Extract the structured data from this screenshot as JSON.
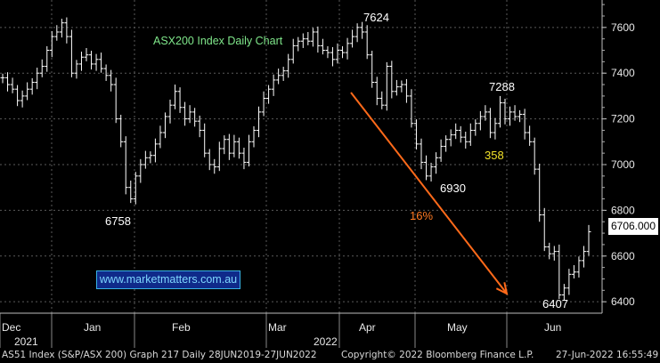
{
  "chart_data": {
    "type": "bar",
    "title": "ASX200 Index Daily Chart",
    "ylim": [
      6350,
      7720
    ],
    "y_ticks": [
      6400,
      6600,
      6800,
      7000,
      7200,
      7400,
      7600
    ],
    "grid": true,
    "x_labels": [
      {
        "label": "Dec",
        "month": "2021-12"
      },
      {
        "label": "Jan",
        "month": "2022-01"
      },
      {
        "label": "Feb",
        "month": "2022-02"
      },
      {
        "label": "Mar",
        "month": "2022-03"
      },
      {
        "label": "Apr",
        "month": "2022-04"
      },
      {
        "label": "May",
        "month": "2022-05"
      },
      {
        "label": "Jun",
        "month": "2022-06"
      }
    ],
    "year_labels": [
      "2021",
      "2022"
    ],
    "series": [
      {
        "close": [
          7380,
          7350,
          7330,
          7280,
          7300,
          7330,
          7360,
          7400,
          7430,
          7500,
          7560,
          7580,
          7620,
          7560,
          7400,
          7440,
          7470,
          7480,
          7440,
          7460,
          7420,
          7390,
          7350,
          7200,
          7100,
          6900,
          6850,
          6950,
          7000,
          7030,
          7040,
          7090,
          7140,
          7210,
          7260,
          7320,
          7250,
          7200,
          7230,
          7190,
          7150,
          7050,
          7000,
          6990,
          7070,
          7110,
          7050,
          7100,
          7050,
          7010,
          7100,
          7150,
          7230,
          7290,
          7330,
          7370,
          7390,
          7410,
          7460,
          7520,
          7540,
          7550,
          7540,
          7580,
          7520,
          7500,
          7490,
          7460,
          7500,
          7490,
          7530,
          7560,
          7600,
          7580,
          7480,
          7360,
          7290,
          7260,
          7430,
          7320,
          7340,
          7350,
          7300,
          7180,
          7090,
          7010,
          6950,
          6990,
          7030,
          7080,
          7110,
          7130,
          7150,
          7120,
          7100,
          7150,
          7180,
          7210,
          7230,
          7140,
          7180,
          7270,
          7200,
          7230,
          7210,
          7220,
          7140,
          7100,
          6980,
          6780,
          6640,
          6610,
          6620,
          6430,
          6460,
          6520,
          6530,
          6580,
          6620,
          6706
        ]
      },
      {
        "name": "arrow",
        "from": {
          "date": "2022-04-05",
          "value": 7330
        },
        "to": {
          "date": "2022-06-10",
          "value": 6400
        }
      }
    ],
    "annotations": [
      {
        "text": "7624",
        "color": "#ffffff"
      },
      {
        "text": "7288",
        "color": "#ffffff"
      },
      {
        "text": "6758",
        "color": "#ffffff"
      },
      {
        "text": "6930",
        "color": "#ffffff"
      },
      {
        "text": "6407",
        "color": "#ffffff"
      },
      {
        "text": "358",
        "color": "#f2e22a"
      },
      {
        "text": "16%",
        "color": "#ff7a22"
      }
    ],
    "last_price": "6706.000",
    "colors": {
      "background": "#000000",
      "bars": "#ffffff",
      "grid": "#5a5a5a",
      "arrow": "#ff6a1a",
      "title": "#7fe68a"
    }
  },
  "watermark": "www.marketmatters.com.au",
  "footer": {
    "left": "AS51 Index (S&P/ASX 200) Graph 217  Daily 28JUN2019-27JUN2022",
    "center": "Copyright© 2022 Bloomberg Finance L.P.",
    "right": "27-Jun-2022 16:55:49"
  }
}
